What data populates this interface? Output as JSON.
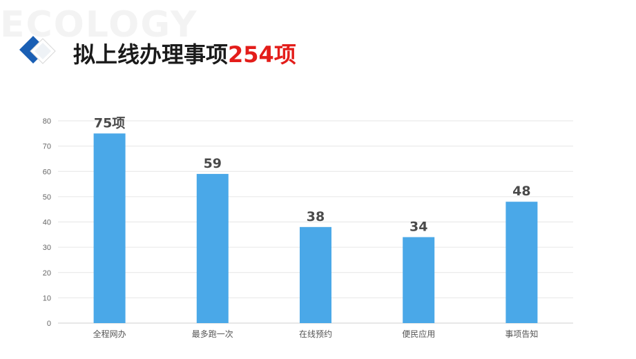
{
  "watermark_text": "ECOLOGY",
  "header": {
    "title_text": "拟上线办理事项",
    "title_highlight": "254项",
    "accent_color": "#e31d1a"
  },
  "chart_data": {
    "type": "bar",
    "categories": [
      "全程网办",
      "最多跑一次",
      "在线预约",
      "便民应用",
      "事项告知"
    ],
    "values": [
      75,
      59,
      38,
      34,
      48
    ],
    "data_labels": [
      "75项",
      "59",
      "38",
      "34",
      "48"
    ],
    "title": "",
    "xlabel": "",
    "ylabel": "",
    "ylim": [
      0,
      80
    ],
    "yticks": [
      0,
      10,
      20,
      30,
      40,
      50,
      60,
      70,
      80
    ],
    "grid": true,
    "bar_color": "#4aa8e8"
  }
}
